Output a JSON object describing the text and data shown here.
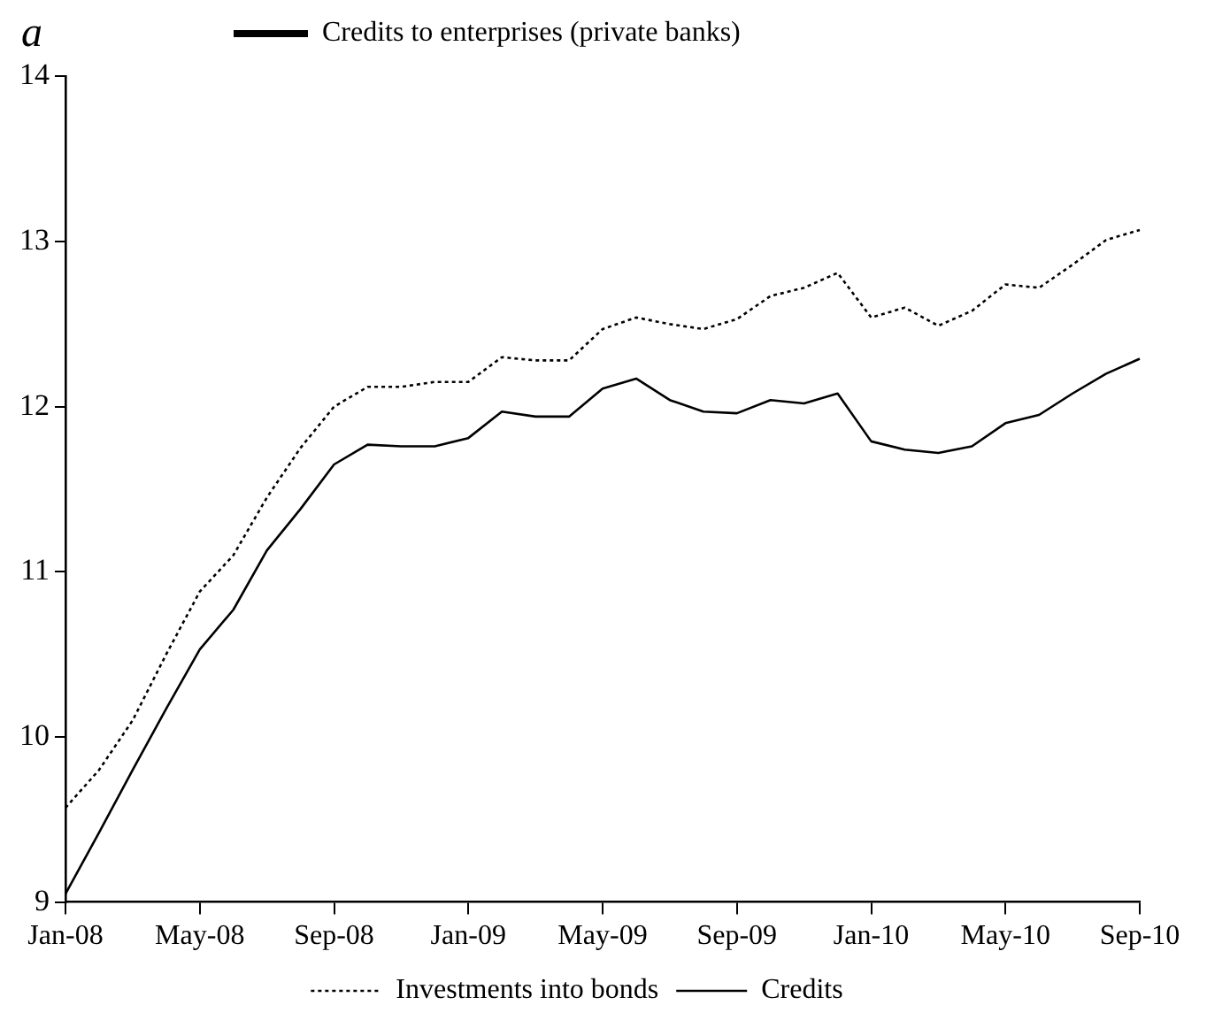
{
  "chart_data": {
    "type": "line",
    "title": "Credits to enterprises (private banks)",
    "annotations": [
      "a"
    ],
    "categories": [
      "Jan-08",
      null,
      null,
      null,
      "May-08",
      null,
      null,
      null,
      "Sep-08",
      null,
      null,
      null,
      "Jan-09",
      null,
      null,
      null,
      "May-09",
      null,
      null,
      null,
      "Sep-09",
      null,
      null,
      null,
      "Jan-10",
      null,
      null,
      null,
      "May-10",
      null,
      null,
      null,
      "Sep-10"
    ],
    "series": [
      {
        "name": "Investments into bonds",
        "color": "#000000",
        "line_style": "dotted",
        "values": [
          9.57,
          9.8,
          10.1,
          10.5,
          10.88,
          11.1,
          11.45,
          11.75,
          12.0,
          12.12,
          12.12,
          12.15,
          12.15,
          12.3,
          12.28,
          12.28,
          12.47,
          12.54,
          12.5,
          12.47,
          12.53,
          12.67,
          12.72,
          12.81,
          12.54,
          12.6,
          12.49,
          12.58,
          12.74,
          12.72,
          12.86,
          13.01,
          13.07
        ]
      },
      {
        "name": "Credits",
        "color": "#000000",
        "line_style": "solid",
        "values": [
          9.05,
          9.42,
          9.8,
          10.17,
          10.53,
          10.77,
          11.13,
          11.38,
          11.65,
          11.77,
          11.76,
          11.76,
          11.81,
          11.97,
          11.94,
          11.94,
          12.11,
          12.17,
          12.04,
          11.97,
          11.96,
          12.04,
          12.02,
          12.08,
          11.79,
          11.74,
          11.72,
          11.76,
          11.9,
          11.95,
          12.08,
          12.2,
          12.29
        ]
      }
    ],
    "ylim": [
      9,
      14
    ],
    "yticks": [
      9,
      10,
      11,
      12,
      13,
      14
    ],
    "grid": false,
    "legend": "bottom",
    "marker": "none"
  }
}
